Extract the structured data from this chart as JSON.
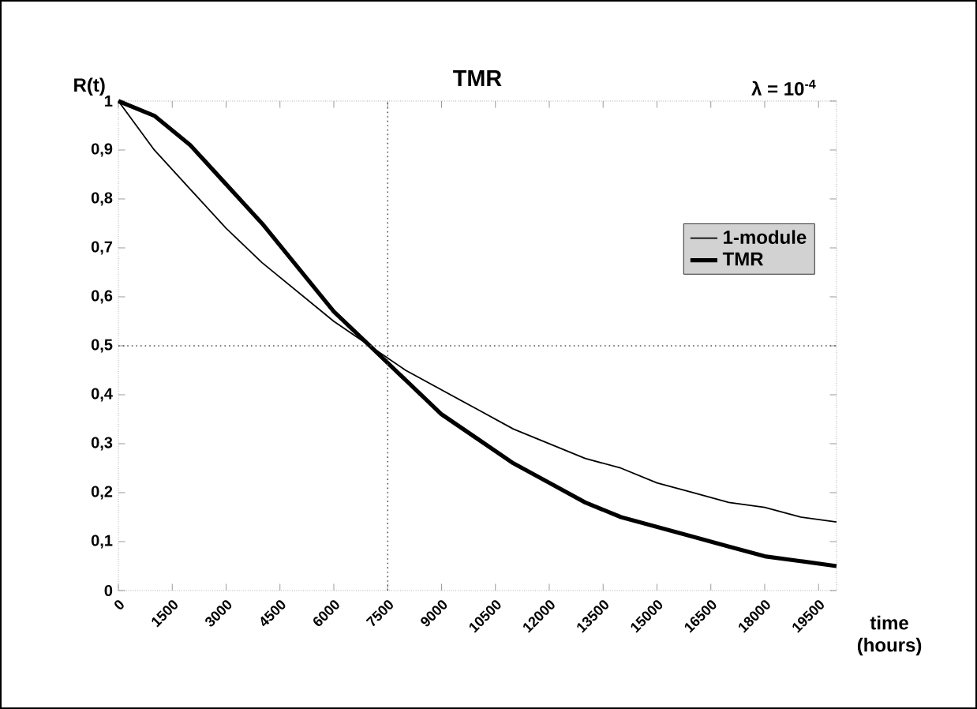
{
  "chart_data": {
    "type": "line",
    "title": "TMR",
    "ylabel": "R(t)",
    "xlabel": "time (hours)",
    "annotations": [
      "λ = 10$^{-4}$"
    ],
    "x": [
      0,
      1000,
      2000,
      3000,
      4000,
      5000,
      6000,
      7000,
      8000,
      9000,
      10000,
      11000,
      12000,
      13000,
      14000,
      15000,
      16000,
      17000,
      18000,
      19000,
      20000
    ],
    "series": [
      {
        "name": "1-module",
        "color": "#000000",
        "values": [
          1,
          0.9,
          0.82,
          0.74,
          0.67,
          0.61,
          0.55,
          0.5,
          0.45,
          0.41,
          0.37,
          0.33,
          0.3,
          0.27,
          0.25,
          0.22,
          0.2,
          0.18,
          0.17,
          0.15,
          0.14
        ]
      },
      {
        "name": "TMR",
        "color": "#000000",
        "values": [
          1,
          0.97,
          0.91,
          0.83,
          0.75,
          0.66,
          0.57,
          0.5,
          0.43,
          0.36,
          0.31,
          0.26,
          0.22,
          0.18,
          0.15,
          0.13,
          0.11,
          0.09,
          0.07,
          0.06,
          0.05
        ]
      }
    ],
    "xlim": [
      0,
      20000
    ],
    "ylim": [
      0,
      1
    ],
    "xticks": [
      0,
      1500,
      3000,
      4500,
      6000,
      7500,
      9000,
      10500,
      12000,
      13500,
      15000,
      16500,
      18000,
      19500
    ],
    "yticks": [
      0,
      {
        "value": 0.1,
        "label": "0,1"
      },
      {
        "value": 0.2,
        "label": "0,2"
      },
      {
        "value": 0.3,
        "label": "0,3"
      },
      {
        "value": 0.4,
        "label": "0,4"
      },
      {
        "value": 0.5,
        "label": "0,5"
      },
      {
        "value": 0.6,
        "label": "0,6"
      },
      {
        "value": 0.7,
        "label": "0,7"
      },
      {
        "value": 0.8,
        "label": "0,8"
      },
      {
        "value": 0.9,
        "label": "0,9"
      },
      1
    ],
    "ref_lines": [
      {
        "axis": "y",
        "value": 0.5,
        "line_style": "dotted",
        "color": "#555555"
      },
      {
        "axis": "x",
        "value": 7500,
        "line_style": "dotted",
        "color": "#555555"
      }
    ],
    "legend": "right",
    "grid": false,
    "marker": "none",
    "line_style": "solid"
  }
}
